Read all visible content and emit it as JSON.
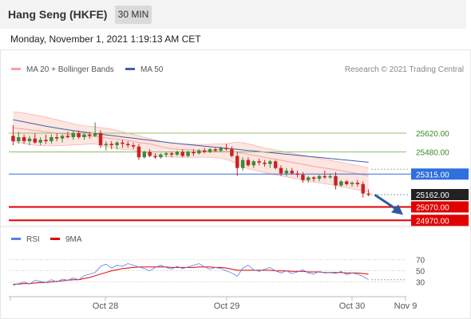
{
  "header": {
    "title": "Hang Seng (HKFE)",
    "timeframe": "30 MIN"
  },
  "datetime": "Monday, November 1, 2021 1:19:13 AM CET",
  "copyright": "Research © 2021 Trading Central",
  "colors": {
    "bull": "#3a8a3a",
    "bear": "#cc2222",
    "ma20": "#f5a3a0",
    "band_fill": "#fde0dc",
    "ma50": "#3f5fa8",
    "resistance": "#8fc16a",
    "support": "#e00000",
    "pivot": "#2f6fde",
    "current": "#222222",
    "rsi": "#5a7fe0",
    "rsi_ma": "#e00000",
    "arrow": "#2d5aa0"
  },
  "chart_data": [
    {
      "type": "candlestick",
      "legend": [
        {
          "name": "MA 20 + Bollinger Bands",
          "color": "#f5a3a0"
        },
        {
          "name": "MA 50",
          "color": "#3f5fa8"
        }
      ],
      "legend_position": "top-left",
      "ylim": [
        24930,
        25810
      ],
      "x_tick_labels": [
        "Oct 28",
        "Oct 29",
        "Oct 30",
        "Nov 9"
      ],
      "levels": [
        {
          "value": 25620.0,
          "label": "25620.00",
          "kind": "resistance"
        },
        {
          "value": 25480.0,
          "label": "25480.00",
          "kind": "resistance"
        },
        {
          "value": 25315.0,
          "label": "25315.00",
          "kind": "pivot"
        },
        {
          "value": 25162.0,
          "label": "25162.00",
          "kind": "current"
        },
        {
          "value": 25070.0,
          "label": "25070.00",
          "kind": "support"
        },
        {
          "value": 24970.0,
          "label": "24970.00",
          "kind": "support"
        }
      ],
      "candles": [
        [
          25600,
          25680,
          25530,
          25560
        ],
        [
          25560,
          25630,
          25540,
          25590
        ],
        [
          25590,
          25610,
          25540,
          25560
        ],
        [
          25560,
          25600,
          25530,
          25580
        ],
        [
          25580,
          25620,
          25540,
          25550
        ],
        [
          25550,
          25590,
          25530,
          25570
        ],
        [
          25570,
          25610,
          25540,
          25560
        ],
        [
          25560,
          25610,
          25540,
          25590
        ],
        [
          25590,
          25620,
          25560,
          25580
        ],
        [
          25580,
          25610,
          25550,
          25600
        ],
        [
          25600,
          25630,
          25580,
          25590
        ],
        [
          25590,
          25640,
          25570,
          25620
        ],
        [
          25620,
          25640,
          25580,
          25590
        ],
        [
          25590,
          25620,
          25570,
          25610
        ],
        [
          25610,
          25630,
          25580,
          25600
        ],
        [
          25600,
          25700,
          25590,
          25620
        ],
        [
          25620,
          25640,
          25510,
          25530
        ],
        [
          25530,
          25560,
          25490,
          25540
        ],
        [
          25540,
          25560,
          25500,
          25530
        ],
        [
          25530,
          25560,
          25500,
          25550
        ],
        [
          25550,
          25570,
          25510,
          25540
        ],
        [
          25540,
          25560,
          25510,
          25530
        ],
        [
          25530,
          25550,
          25500,
          25520
        ],
        [
          25520,
          25540,
          25420,
          25440
        ],
        [
          25440,
          25490,
          25430,
          25480
        ],
        [
          25480,
          25500,
          25440,
          25450
        ],
        [
          25450,
          25470,
          25430,
          25440
        ],
        [
          25440,
          25470,
          25430,
          25460
        ],
        [
          25460,
          25480,
          25440,
          25470
        ],
        [
          25470,
          25480,
          25440,
          25460
        ],
        [
          25460,
          25490,
          25450,
          25480
        ],
        [
          25480,
          25500,
          25440,
          25450
        ],
        [
          25450,
          25490,
          25440,
          25480
        ],
        [
          25480,
          25500,
          25450,
          25470
        ],
        [
          25470,
          25500,
          25460,
          25490
        ],
        [
          25490,
          25510,
          25470,
          25480
        ],
        [
          25480,
          25510,
          25470,
          25500
        ],
        [
          25500,
          25510,
          25480,
          25490
        ],
        [
          25490,
          25520,
          25480,
          25510
        ],
        [
          25510,
          25540,
          25490,
          25500
        ],
        [
          25500,
          25520,
          25440,
          25450
        ],
        [
          25450,
          25480,
          25300,
          25360
        ],
        [
          25360,
          25440,
          25340,
          25420
        ],
        [
          25420,
          25440,
          25370,
          25380
        ],
        [
          25380,
          25420,
          25360,
          25410
        ],
        [
          25410,
          25430,
          25380,
          25400
        ],
        [
          25400,
          25420,
          25370,
          25390
        ],
        [
          25390,
          25420,
          25360,
          25410
        ],
        [
          25410,
          25420,
          25350,
          25360
        ],
        [
          25360,
          25380,
          25300,
          25320
        ],
        [
          25320,
          25360,
          25300,
          25340
        ],
        [
          25340,
          25360,
          25310,
          25320
        ],
        [
          25320,
          25340,
          25290,
          25310
        ],
        [
          25310,
          25330,
          25250,
          25270
        ],
        [
          25270,
          25300,
          25250,
          25290
        ],
        [
          25290,
          25300,
          25260,
          25280
        ],
        [
          25280,
          25310,
          25260,
          25300
        ],
        [
          25300,
          25340,
          25280,
          25290
        ],
        [
          25290,
          25320,
          25280,
          25300
        ],
        [
          25300,
          25330,
          25200,
          25230
        ],
        [
          25230,
          25270,
          25220,
          25260
        ],
        [
          25260,
          25270,
          25230,
          25240
        ],
        [
          25240,
          25260,
          25220,
          25250
        ],
        [
          25250,
          25270,
          25220,
          25240
        ],
        [
          25240,
          25260,
          25140,
          25170
        ],
        [
          25170,
          25200,
          25150,
          25160
        ]
      ],
      "ma20": [
        25660,
        25655,
        25650,
        25645,
        25640,
        25635,
        25630,
        25625,
        25620,
        25615,
        25612,
        25608,
        25605,
        25600,
        25598,
        25596,
        25590,
        25585,
        25580,
        25575,
        25570,
        25565,
        25560,
        25550,
        25545,
        25540,
        25530,
        25520,
        25510,
        25505,
        25500,
        25498,
        25496,
        25494,
        25492,
        25490,
        25488,
        25486,
        25484,
        25483,
        25482,
        25478,
        25470,
        25462,
        25455,
        25448,
        25440,
        25432,
        25425,
        25418,
        25410,
        25402,
        25395,
        25388,
        25380,
        25372,
        25366,
        25360,
        25354,
        25348,
        25340,
        25332,
        25325,
        25318,
        25310,
        25300
      ],
      "upper_band": [
        25780,
        25775,
        25770,
        25762,
        25755,
        25748,
        25740,
        25730,
        25720,
        25710,
        25700,
        25690,
        25682,
        25676,
        25670,
        25666,
        25662,
        25656,
        25650,
        25640,
        25630,
        25620,
        25612,
        25600,
        25590,
        25580,
        25570,
        25560,
        25552,
        25546,
        25542,
        25540,
        25538,
        25537,
        25536,
        25536,
        25537,
        25538,
        25540,
        25542,
        25548,
        25552,
        25548,
        25540,
        25530,
        25520,
        25510,
        25502,
        25494,
        25486,
        25478,
        25470,
        25463,
        25455,
        25447,
        25440,
        25432,
        25424,
        25418,
        25410,
        25402,
        25394,
        25386,
        25378,
        25370,
        25360
      ],
      "lower_band": [
        25560,
        25550,
        25542,
        25535,
        25530,
        25528,
        25526,
        25525,
        25526,
        25528,
        25530,
        25532,
        25534,
        25536,
        25538,
        25540,
        25530,
        25520,
        25512,
        25505,
        25500,
        25496,
        25492,
        25485,
        25478,
        25470,
        25460,
        25452,
        25446,
        25442,
        25440,
        25440,
        25440,
        25440,
        25440,
        25440,
        25440,
        25438,
        25432,
        25424,
        25410,
        25390,
        25370,
        25355,
        25345,
        25336,
        25326,
        25318,
        25310,
        25302,
        25294,
        25286,
        25278,
        25270,
        25262,
        25255,
        25248,
        25242,
        25236,
        25230,
        25222,
        25214,
        25206,
        25198,
        25190,
        25180
      ],
      "ma50": [
        25720,
        25712,
        25704,
        25696,
        25688,
        25680,
        25672,
        25665,
        25658,
        25651,
        25645,
        25639,
        25633,
        25628,
        25623,
        25618,
        25612,
        25607,
        25602,
        25597,
        25592,
        25587,
        25582,
        25577,
        25572,
        25567,
        25562,
        25557,
        25552,
        25547,
        25543,
        25539,
        25535,
        25531,
        25527,
        25523,
        25519,
        25515,
        25511,
        25507,
        25503,
        25499,
        25495,
        25491,
        25487,
        25483,
        25479,
        25475,
        25471,
        25467,
        25463,
        25459,
        25455,
        25451,
        25447,
        25443,
        25439,
        25435,
        25431,
        25427,
        25423,
        25419,
        25415,
        25411,
        25407,
        25403
      ]
    },
    {
      "type": "line",
      "legend": [
        {
          "name": "RSI",
          "color": "#5a7fe0"
        },
        {
          "name": "9MA",
          "color": "#e00000"
        }
      ],
      "legend_position": "top-left",
      "ylim": [
        5,
        88
      ],
      "y_ticks": [
        70,
        50,
        30
      ],
      "rsi": [
        24,
        27,
        30,
        26,
        33,
        31,
        29,
        34,
        30,
        35,
        33,
        37,
        34,
        41,
        44,
        47,
        58,
        62,
        55,
        60,
        58,
        63,
        60,
        57,
        54,
        50,
        56,
        60,
        56,
        53,
        58,
        54,
        57,
        60,
        63,
        57,
        53,
        56,
        54,
        50,
        46,
        40,
        55,
        60,
        52,
        49,
        53,
        56,
        50,
        46,
        50,
        45,
        48,
        52,
        46,
        44,
        49,
        46,
        47,
        45,
        49,
        43,
        46,
        44,
        40,
        34
      ],
      "rsi_ma": [
        26,
        26,
        27,
        27,
        28,
        29,
        29,
        30,
        31,
        32,
        33,
        34,
        34,
        36,
        38,
        41,
        44,
        47,
        50,
        52,
        54,
        55,
        56,
        57,
        57,
        57,
        57,
        57,
        57,
        56,
        56,
        56,
        56,
        56,
        57,
        57,
        57,
        56,
        56,
        55,
        53,
        51,
        51,
        51,
        51,
        51,
        51,
        51,
        50,
        50,
        50,
        49,
        49,
        49,
        48,
        48,
        48,
        47,
        47,
        47,
        47,
        46,
        46,
        46,
        45,
        44
      ]
    }
  ]
}
